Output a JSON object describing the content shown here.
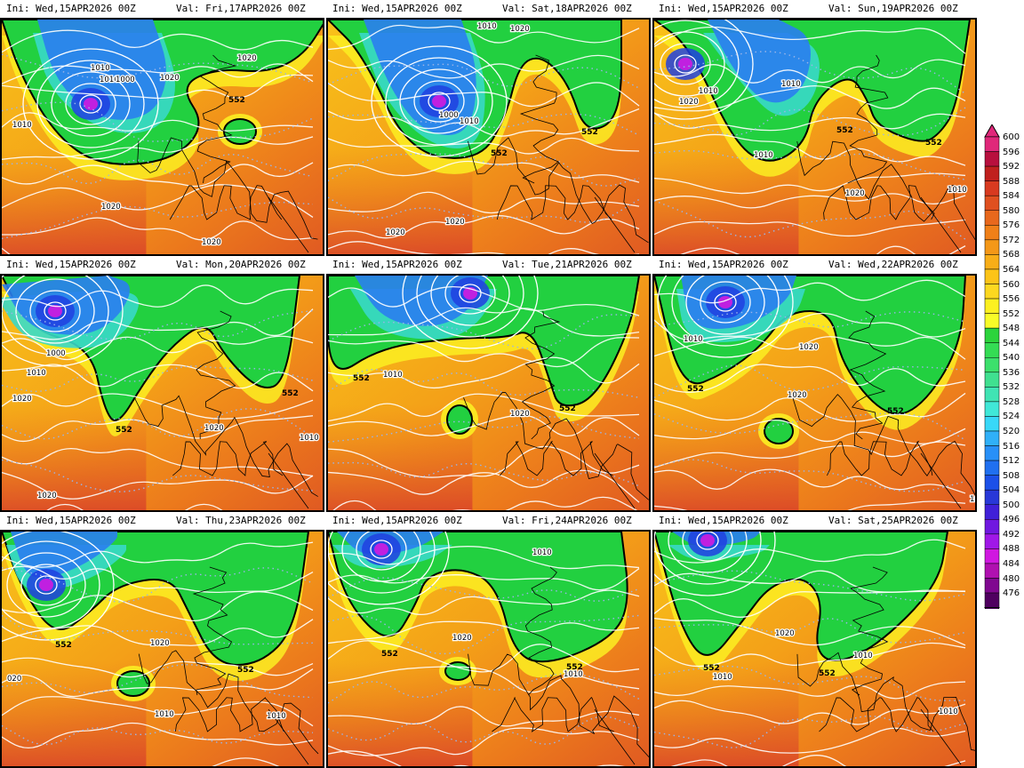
{
  "panels": [
    {
      "ini": "Ini: Wed,15APR2026 00Z",
      "val": "Val: Fri,17APR2026 00Z",
      "iso": [
        "1010",
        "1010",
        "1000",
        "1020",
        "1020",
        "1010",
        "1020",
        "1020"
      ],
      "h552": [
        "552"
      ]
    },
    {
      "ini": "Ini: Wed,15APR2026 00Z",
      "val": "Val: Sat,18APR2026 00Z",
      "iso": [
        "1010",
        "1020",
        "1000",
        "1010",
        "1020",
        "1020"
      ],
      "h552": [
        "552",
        "552"
      ]
    },
    {
      "ini": "Ini: Wed,15APR2026 00Z",
      "val": "Val: Sun,19APR2026 00Z",
      "iso": [
        "1010",
        "1010",
        "1020",
        "1010",
        "1020",
        "1010"
      ],
      "h552": [
        "552",
        "552"
      ]
    },
    {
      "ini": "Ini: Wed,15APR2026 00Z",
      "val": "Val: Mon,20APR2026 00Z",
      "iso": [
        "1000",
        "1010",
        "1020",
        "1020",
        "1020",
        "1010"
      ],
      "h552": [
        "552",
        "552"
      ]
    },
    {
      "ini": "Ini: Wed,15APR2026 00Z",
      "val": "Val: Tue,21APR2026 00Z",
      "iso": [
        "1010",
        "1020"
      ],
      "h552": [
        "552",
        "552"
      ]
    },
    {
      "ini": "Ini: Wed,15APR2026 00Z",
      "val": "Val: Wed,22APR2026 00Z",
      "iso": [
        "1010",
        "1020",
        "1020",
        "1010"
      ],
      "h552": [
        "552",
        "552"
      ]
    },
    {
      "ini": "Ini: Wed,15APR2026 00Z",
      "val": "Val: Thu,23APR2026 00Z",
      "iso": [
        "020",
        "1020",
        "1010",
        "1010"
      ],
      "h552": [
        "552",
        "552"
      ]
    },
    {
      "ini": "Ini: Wed,15APR2026 00Z",
      "val": "Val: Fri,24APR2026 00Z",
      "iso": [
        "1010",
        "1020",
        "1010"
      ],
      "h552": [
        "552",
        "552"
      ]
    },
    {
      "ini": "Ini: Wed,15APR2026 00Z",
      "val": "Val: Sat,25APR2026 00Z",
      "iso": [
        "1020",
        "1010",
        "1010",
        "1010"
      ],
      "h552": [
        "552",
        "552"
      ]
    }
  ],
  "colorbar": {
    "labels": [
      "600",
      "596",
      "592",
      "588",
      "584",
      "580",
      "576",
      "572",
      "568",
      "564",
      "560",
      "556",
      "552",
      "548",
      "544",
      "540",
      "536",
      "532",
      "528",
      "524",
      "520",
      "516",
      "512",
      "508",
      "504",
      "500",
      "496",
      "492",
      "488",
      "484",
      "480",
      "476"
    ],
    "colors": [
      "#e0287a",
      "#b8103e",
      "#c0201e",
      "#d83a20",
      "#e05020",
      "#e8681c",
      "#f08018",
      "#f49818",
      "#f8ae18",
      "#fcc418",
      "#fcd820",
      "#fcf020",
      "#f8fc28",
      "#2cd43c",
      "#34dc54",
      "#3ce06c",
      "#40e090",
      "#40e4b4",
      "#40e8d8",
      "#38d8f8",
      "#30b0f8",
      "#2890f8",
      "#2070f0",
      "#1c50e8",
      "#2838d8",
      "#4020d8",
      "#7018e0",
      "#a018e8",
      "#d018e0",
      "#b010b0",
      "#800890",
      "#500060"
    ]
  }
}
